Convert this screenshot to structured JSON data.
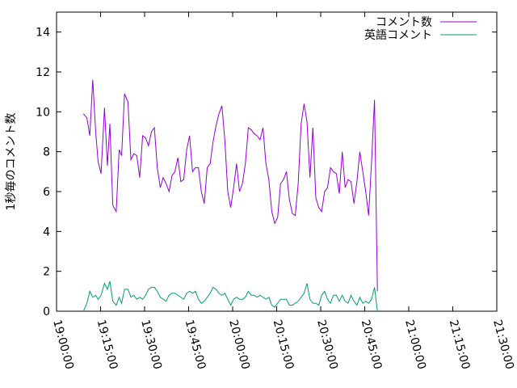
{
  "chart_data": {
    "type": "line",
    "title": "",
    "xlabel": "",
    "ylabel": "1秒毎のコメント数",
    "xlim": [
      "19:00:00",
      "21:30:00"
    ],
    "ylim": [
      0,
      15
    ],
    "x_ticks": [
      "19:00:00",
      "19:15:00",
      "19:30:00",
      "19:45:00",
      "20:00:00",
      "20:15:00",
      "20:30:00",
      "20:45:00",
      "21:00:00",
      "21:15:00",
      "21:30:00"
    ],
    "y_ticks": [
      0,
      2,
      4,
      6,
      8,
      10,
      12,
      14
    ],
    "grid": false,
    "legend_position": "top-right",
    "series": [
      {
        "name": "コメント数",
        "color": "#9400d3",
        "points": [
          [
            "19:09:10",
            9.9
          ],
          [
            "19:10:20",
            9.7
          ],
          [
            "19:11:20",
            8.8
          ],
          [
            "19:12:20",
            11.6
          ],
          [
            "19:13:20",
            9.0
          ],
          [
            "19:14:10",
            7.5
          ],
          [
            "19:15:10",
            6.9
          ],
          [
            "19:16:20",
            10.2
          ],
          [
            "19:17:20",
            7.3
          ],
          [
            "19:18:10",
            9.4
          ],
          [
            "19:19:10",
            5.3
          ],
          [
            "19:20:20",
            5.0
          ],
          [
            "19:21:20",
            8.1
          ],
          [
            "19:22:10",
            7.8
          ],
          [
            "19:23:10",
            10.9
          ],
          [
            "19:24:20",
            10.5
          ],
          [
            "19:25:20",
            7.6
          ],
          [
            "19:26:20",
            7.9
          ],
          [
            "19:27:20",
            7.8
          ],
          [
            "19:28:20",
            6.7
          ],
          [
            "19:29:20",
            8.8
          ],
          [
            "19:30:20",
            8.7
          ],
          [
            "19:31:20",
            8.3
          ],
          [
            "19:32:20",
            9.0
          ],
          [
            "19:33:20",
            9.2
          ],
          [
            "19:34:20",
            7.2
          ],
          [
            "19:35:20",
            6.2
          ],
          [
            "19:36:20",
            6.7
          ],
          [
            "19:37:20",
            6.4
          ],
          [
            "19:38:20",
            6.0
          ],
          [
            "19:39:20",
            6.8
          ],
          [
            "19:40:20",
            7.0
          ],
          [
            "19:41:20",
            7.7
          ],
          [
            "19:42:20",
            6.5
          ],
          [
            "19:43:20",
            6.6
          ],
          [
            "19:44:20",
            8.1
          ],
          [
            "19:45:20",
            8.8
          ],
          [
            "19:46:20",
            7.0
          ],
          [
            "19:47:20",
            7.2
          ],
          [
            "19:48:20",
            7.2
          ],
          [
            "19:49:20",
            6.0
          ],
          [
            "19:50:20",
            5.4
          ],
          [
            "19:51:20",
            7.2
          ],
          [
            "19:52:20",
            7.4
          ],
          [
            "19:53:20",
            8.5
          ],
          [
            "19:54:20",
            9.3
          ],
          [
            "19:55:20",
            9.9
          ],
          [
            "19:56:20",
            10.3
          ],
          [
            "19:57:20",
            8.6
          ],
          [
            "19:58:20",
            6.0
          ],
          [
            "19:59:20",
            5.2
          ],
          [
            "20:00:20",
            6.2
          ],
          [
            "20:01:20",
            7.4
          ],
          [
            "20:02:20",
            6.0
          ],
          [
            "20:03:20",
            6.4
          ],
          [
            "20:04:20",
            7.4
          ],
          [
            "20:05:20",
            9.2
          ],
          [
            "20:06:20",
            9.1
          ],
          [
            "20:07:20",
            8.9
          ],
          [
            "20:08:20",
            8.8
          ],
          [
            "20:09:20",
            8.6
          ],
          [
            "20:10:20",
            9.2
          ],
          [
            "20:11:20",
            7.4
          ],
          [
            "20:12:20",
            6.6
          ],
          [
            "20:13:20",
            5.0
          ],
          [
            "20:14:20",
            4.4
          ],
          [
            "20:15:20",
            4.7
          ],
          [
            "20:16:20",
            6.4
          ],
          [
            "20:17:20",
            6.6
          ],
          [
            "20:18:20",
            7.0
          ],
          [
            "20:19:20",
            5.6
          ],
          [
            "20:20:20",
            4.9
          ],
          [
            "20:21:20",
            4.8
          ],
          [
            "20:22:20",
            6.4
          ],
          [
            "20:23:20",
            9.4
          ],
          [
            "20:24:20",
            10.4
          ],
          [
            "20:25:20",
            9.5
          ],
          [
            "20:26:20",
            6.7
          ],
          [
            "20:27:20",
            9.2
          ],
          [
            "20:28:20",
            5.7
          ],
          [
            "20:29:20",
            5.2
          ],
          [
            "20:30:20",
            5.0
          ],
          [
            "20:31:20",
            6.0
          ],
          [
            "20:32:20",
            6.2
          ],
          [
            "20:33:20",
            7.2
          ],
          [
            "20:34:20",
            7.0
          ],
          [
            "20:35:20",
            6.9
          ],
          [
            "20:36:20",
            5.9
          ],
          [
            "20:37:20",
            8.0
          ],
          [
            "20:38:20",
            6.2
          ],
          [
            "20:39:20",
            6.6
          ],
          [
            "20:40:20",
            6.5
          ],
          [
            "20:41:20",
            5.4
          ],
          [
            "20:42:20",
            6.5
          ],
          [
            "20:43:20",
            8.0
          ],
          [
            "20:44:20",
            7.0
          ],
          [
            "20:45:20",
            6.0
          ],
          [
            "20:46:20",
            4.8
          ],
          [
            "20:47:20",
            7.5
          ],
          [
            "20:48:20",
            10.6
          ],
          [
            "20:49:20",
            1.0
          ]
        ]
      },
      {
        "name": "英語コメント",
        "color": "#009e73",
        "points": [
          [
            "19:09:10",
            0.0
          ],
          [
            "19:10:20",
            0.4
          ],
          [
            "19:11:20",
            1.0
          ],
          [
            "19:12:20",
            0.7
          ],
          [
            "19:13:20",
            0.8
          ],
          [
            "19:14:10",
            0.6
          ],
          [
            "19:15:10",
            0.8
          ],
          [
            "19:16:20",
            1.4
          ],
          [
            "19:17:20",
            1.1
          ],
          [
            "19:18:10",
            1.5
          ],
          [
            "19:19:10",
            0.5
          ],
          [
            "19:20:20",
            0.3
          ],
          [
            "19:21:20",
            0.7
          ],
          [
            "19:22:10",
            0.4
          ],
          [
            "19:23:10",
            1.1
          ],
          [
            "19:24:20",
            1.1
          ],
          [
            "19:25:20",
            0.7
          ],
          [
            "19:26:20",
            0.8
          ],
          [
            "19:27:20",
            0.6
          ],
          [
            "19:28:20",
            0.7
          ],
          [
            "19:29:20",
            0.6
          ],
          [
            "19:30:20",
            0.8
          ],
          [
            "19:31:20",
            1.1
          ],
          [
            "19:32:20",
            1.2
          ],
          [
            "19:33:20",
            1.2
          ],
          [
            "19:34:20",
            1.0
          ],
          [
            "19:35:20",
            0.7
          ],
          [
            "19:36:20",
            0.6
          ],
          [
            "19:37:20",
            0.5
          ],
          [
            "19:38:20",
            0.8
          ],
          [
            "19:39:20",
            0.9
          ],
          [
            "19:40:20",
            0.9
          ],
          [
            "19:41:20",
            0.8
          ],
          [
            "19:42:20",
            0.7
          ],
          [
            "19:43:20",
            0.6
          ],
          [
            "19:44:20",
            0.9
          ],
          [
            "19:45:20",
            1.0
          ],
          [
            "19:46:20",
            0.9
          ],
          [
            "19:47:20",
            1.0
          ],
          [
            "19:48:20",
            0.6
          ],
          [
            "19:49:20",
            0.4
          ],
          [
            "19:50:20",
            0.5
          ],
          [
            "19:51:20",
            0.7
          ],
          [
            "19:52:20",
            0.9
          ],
          [
            "19:53:20",
            1.2
          ],
          [
            "19:54:20",
            1.1
          ],
          [
            "19:55:20",
            0.9
          ],
          [
            "19:56:20",
            0.8
          ],
          [
            "19:57:20",
            0.9
          ],
          [
            "19:58:20",
            0.6
          ],
          [
            "19:59:20",
            0.3
          ],
          [
            "20:00:20",
            0.6
          ],
          [
            "20:01:20",
            0.7
          ],
          [
            "20:02:20",
            0.6
          ],
          [
            "20:03:20",
            0.6
          ],
          [
            "20:04:20",
            0.7
          ],
          [
            "20:05:20",
            1.0
          ],
          [
            "20:06:20",
            0.8
          ],
          [
            "20:07:20",
            0.8
          ],
          [
            "20:08:20",
            0.7
          ],
          [
            "20:09:20",
            0.8
          ],
          [
            "20:10:20",
            0.7
          ],
          [
            "20:11:20",
            0.6
          ],
          [
            "20:12:20",
            0.7
          ],
          [
            "20:13:20",
            0.3
          ],
          [
            "20:14:20",
            0.2
          ],
          [
            "20:15:20",
            0.4
          ],
          [
            "20:16:20",
            0.6
          ],
          [
            "20:17:20",
            0.6
          ],
          [
            "20:18:20",
            0.6
          ],
          [
            "20:19:20",
            0.3
          ],
          [
            "20:20:20",
            0.3
          ],
          [
            "20:21:20",
            0.4
          ],
          [
            "20:22:20",
            0.5
          ],
          [
            "20:23:20",
            0.7
          ],
          [
            "20:24:20",
            0.9
          ],
          [
            "20:25:20",
            1.4
          ],
          [
            "20:26:20",
            0.6
          ],
          [
            "20:27:20",
            0.4
          ],
          [
            "20:28:20",
            0.4
          ],
          [
            "20:29:20",
            0.3
          ],
          [
            "20:30:20",
            0.8
          ],
          [
            "20:31:20",
            1.0
          ],
          [
            "20:32:20",
            0.6
          ],
          [
            "20:33:20",
            0.4
          ],
          [
            "20:34:20",
            0.8
          ],
          [
            "20:35:20",
            0.8
          ],
          [
            "20:36:20",
            0.5
          ],
          [
            "20:37:20",
            0.8
          ],
          [
            "20:38:20",
            0.5
          ],
          [
            "20:39:20",
            0.4
          ],
          [
            "20:40:20",
            0.8
          ],
          [
            "20:41:20",
            0.5
          ],
          [
            "20:42:20",
            0.3
          ],
          [
            "20:43:20",
            0.7
          ],
          [
            "20:44:20",
            0.4
          ],
          [
            "20:45:20",
            0.5
          ],
          [
            "20:46:20",
            0.4
          ],
          [
            "20:47:20",
            0.6
          ],
          [
            "20:48:20",
            1.2
          ],
          [
            "20:49:20",
            0.0
          ]
        ]
      }
    ]
  }
}
